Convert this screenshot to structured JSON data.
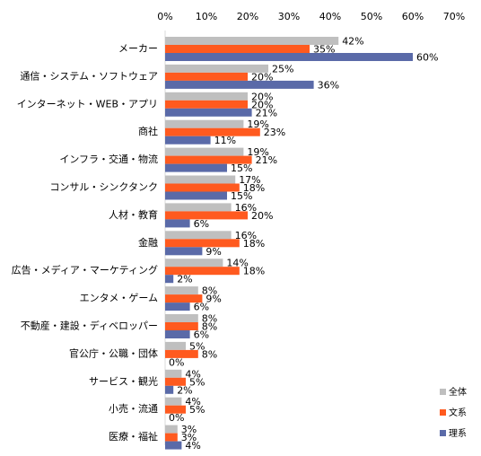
{
  "chart_data": {
    "type": "bar",
    "orientation": "horizontal",
    "categories": [
      "メーカー",
      "通信・システム・ソフトウェア",
      "インターネット・WEB・アプリ",
      "商社",
      "インフラ・交通・物流",
      "コンサル・シンクタンク",
      "人材・教育",
      "金融",
      "広告・メディア・マーケティング",
      "エンタメ・ゲーム",
      "不動産・建設・ディベロッパー",
      "官公庁・公職・団体",
      "サービス・観光",
      "小売・流通",
      "医療・福祉"
    ],
    "series": [
      {
        "name": "全体",
        "color": "#bfbfbf",
        "values": [
          42,
          25,
          20,
          19,
          19,
          17,
          16,
          16,
          14,
          8,
          8,
          5,
          4,
          4,
          3
        ]
      },
      {
        "name": "文系",
        "color": "#ff5a1f",
        "values": [
          35,
          20,
          20,
          23,
          21,
          18,
          20,
          18,
          18,
          9,
          8,
          8,
          5,
          5,
          3
        ]
      },
      {
        "name": "理系",
        "color": "#5a6aa8",
        "values": [
          60,
          36,
          21,
          11,
          15,
          15,
          6,
          9,
          2,
          6,
          6,
          0,
          2,
          0,
          4
        ]
      }
    ],
    "xlim": [
      0,
      70
    ],
    "xticks": [
      0,
      10,
      20,
      30,
      40,
      50,
      60,
      70
    ],
    "tick_suffix": "%",
    "axis_position": "top",
    "grid": false,
    "legend_position": "bottom-right"
  }
}
